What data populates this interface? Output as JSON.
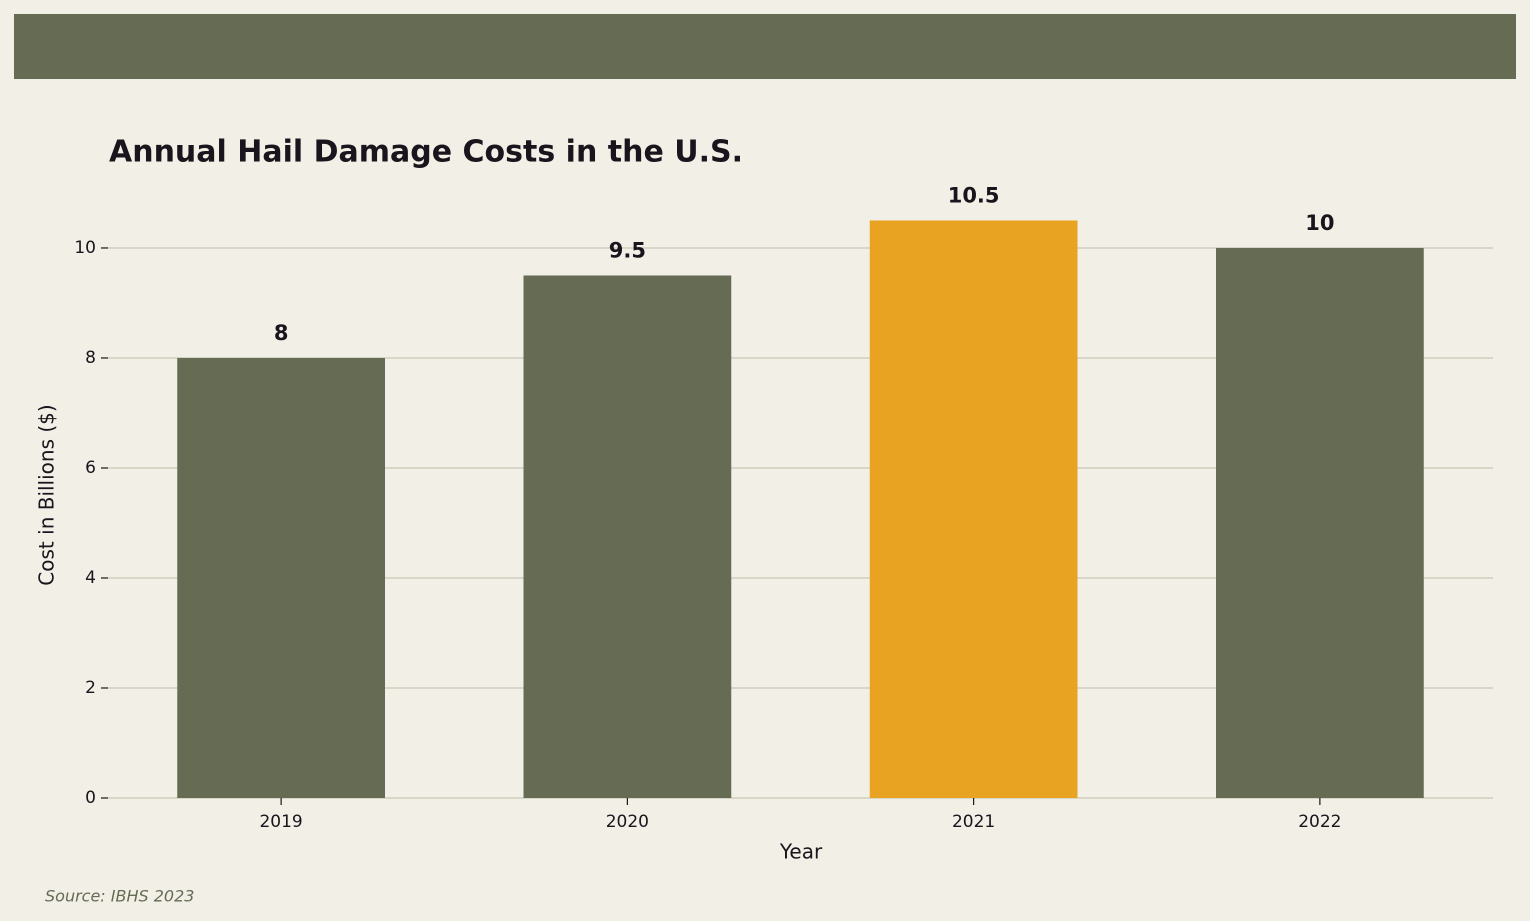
{
  "chart_data": {
    "type": "bar",
    "title": "Annual Hail Damage Costs in the U.S.",
    "x_label": "Year",
    "y_label": "Cost in Billions ($)",
    "categories": [
      "2019",
      "2020",
      "2021",
      "2022"
    ],
    "values": [
      8,
      9.5,
      10.5,
      10
    ],
    "colors": [
      "#666b54",
      "#666b54",
      "#e8a323",
      "#666b54"
    ],
    "ylim": [
      0,
      11.025
    ],
    "yticks": [
      0,
      2,
      4,
      6,
      8,
      10
    ],
    "grid": true,
    "source": "Source: IBHS 2023"
  }
}
